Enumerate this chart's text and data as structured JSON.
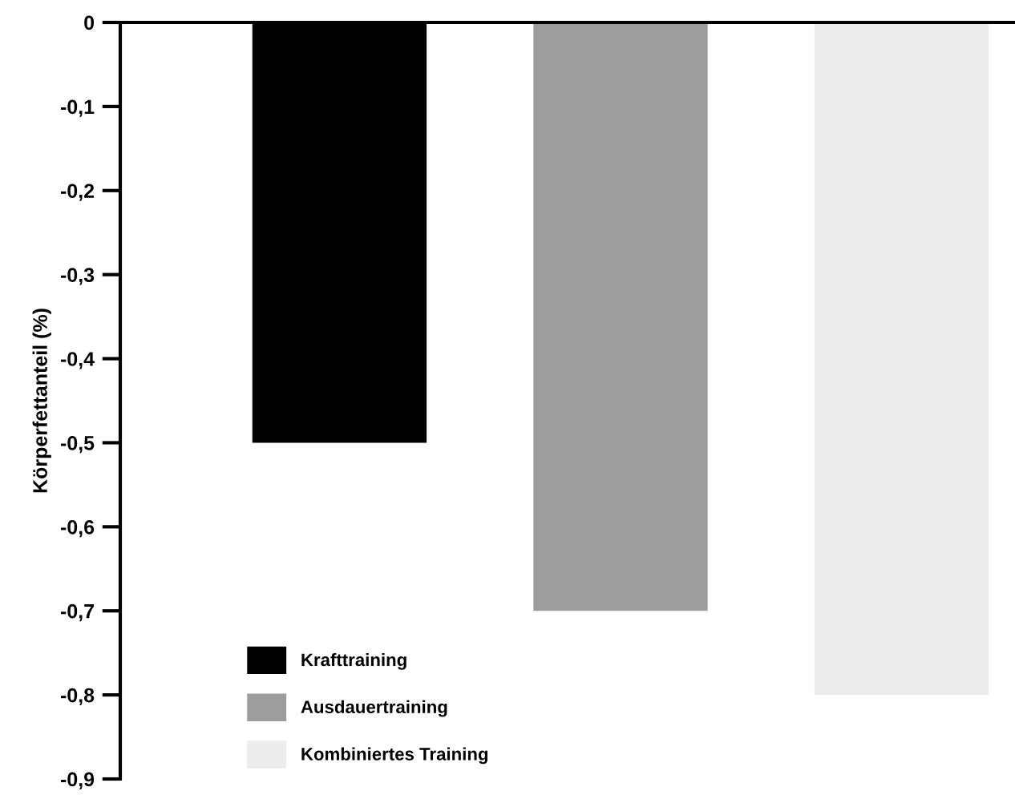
{
  "chart_data": {
    "type": "bar",
    "ylabel": "Körperfettanteil (%)",
    "categories": [
      null,
      null,
      null
    ],
    "series": [
      {
        "name": "Krafttraining",
        "color": "#000000",
        "values": [
          -0.5,
          null,
          null
        ]
      },
      {
        "name": "Ausdauertraining",
        "color": "#9d9d9d",
        "values": [
          null,
          -0.7,
          null
        ]
      },
      {
        "name": "Kombiniertes Training",
        "color": "#ececec",
        "values": [
          null,
          null,
          -0.8
        ]
      }
    ],
    "ylim": [
      -0.9,
      0
    ],
    "yticks": [
      0,
      {
        "value": -0.1,
        "label": "-0,1"
      },
      {
        "value": -0.2,
        "label": "-0,2"
      },
      {
        "value": -0.3,
        "label": "-0,3"
      },
      {
        "value": -0.4,
        "label": "-0,4"
      },
      {
        "value": -0.5,
        "label": "-0,5"
      },
      {
        "value": -0.6,
        "label": "-0,6"
      },
      {
        "value": -0.7,
        "label": "-0,7"
      },
      {
        "value": -0.8,
        "label": "-0,8"
      },
      {
        "value": -0.9,
        "label": "-0,9"
      }
    ],
    "grid": false,
    "legend": "bottom left"
  }
}
